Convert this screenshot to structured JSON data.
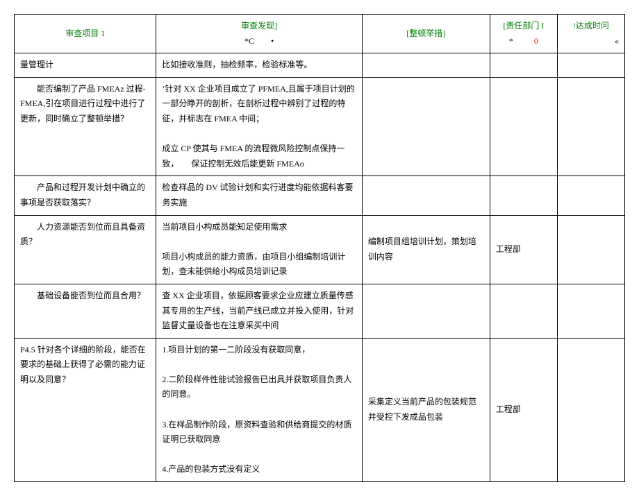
{
  "header": {
    "col1": "审查项目 1",
    "col2_line1": "审查发现]",
    "col2_line2a": "*C",
    "col2_line2b": "•",
    "col3": "[整顿举措]",
    "col4_a": "[责任部门 I",
    "col4_b": "*",
    "col4_c": "0",
    "col5_a": "!达成时问",
    "col5_b": "«"
  },
  "rows": [
    {
      "item": "量管理计",
      "finding": "比如接收准则，抽检频率，检验标准等。",
      "action": "",
      "dept": "",
      "time": ""
    },
    {
      "item": "　　能否编制了产品 FMEAz 过程-FMEA,引在项目进行过程中进行了更新，同时确立了整顿举措？",
      "finding": "’针对 XX 企业项目成立了 PFMEA,且属于项目计划的一部分睁开的剖析，在剖析过程中辨别了过程的特征，并标志在 FMEA 中间；\n\n成立 CP 使其与 FMEA 的流程微风险控制点保持一致，　　保证控制无效后能更新 FMEAo",
      "action": "",
      "dept": "",
      "time": ""
    },
    {
      "item": "　　产品和过程开发计划中确立的事项是否获取落实？",
      "finding": "检查样品的 DV 试验计划和实行进度均能依据料客要务实施",
      "action": "",
      "dept": "",
      "time": ""
    },
    {
      "item": "　　人力资源能否到位而且具备资质？",
      "finding": "当前项目小构成员能知足使用需求\n\n项目小构成员的能力资质，由项目小组编制培训计划，查未能供给小构成员培训记录",
      "action": "编制项目组培训计划，策划培训内容",
      "dept": "工程部",
      "time": ""
    },
    {
      "item": "　　基础设备能否到位而且合用？",
      "finding": "查 XX 企业项目，依据顾客要求企业应建立质量传感其专用的生产线，当前产线已成立并投入使用，针对监督丈量设备也在注意采买中间",
      "action": "",
      "dept": "",
      "time": ""
    },
    {
      "item": "P4.5 针对各个详细的阶段，能否在要求的基础上获得了必需的能力证明以及同意？",
      "finding": "1.项目计划的第一二阶段没有获取同意，\n\n2.二阶段样件性能试验报告已出具并获取项目负责人的同意。\n\n3.在样品制作阶段，原资料查验和供给商提交的材质证明已获取同意\n\n4.产品的包装方式没有定义",
      "action": "采集定义当前产品的包装规范并受控下发成品包装",
      "dept": "工程部",
      "time": ""
    }
  ]
}
